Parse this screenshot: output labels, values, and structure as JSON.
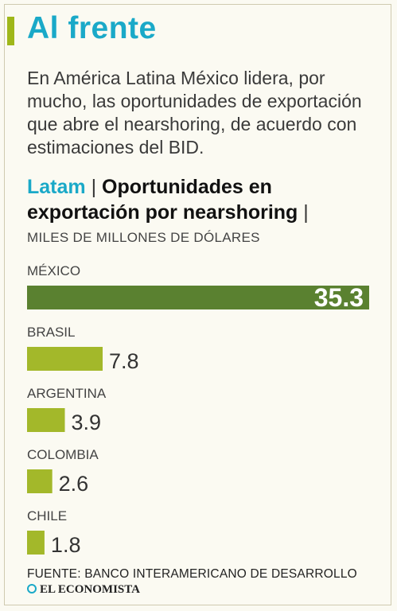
{
  "header": {
    "title": "Al frente",
    "intro": "En América Latina México lidera, por mucho, las oportunidades de exportación que abre el nearshoring, de acuerdo con estimaciones del BID."
  },
  "chart_header": {
    "prefix": "Latam",
    "separator": "|",
    "title": "Oportunidades en exportación por nearshoring",
    "trailing": "|",
    "units": "MILES DE MILLONES DE DÓLARES"
  },
  "chart_data": {
    "type": "bar",
    "orientation": "horizontal",
    "categories": [
      "MÉXICO",
      "BRASIL",
      "ARGENTINA",
      "COLOMBIA",
      "CHILE"
    ],
    "values": [
      35.3,
      7.8,
      3.9,
      2.6,
      1.8
    ],
    "value_labels": [
      "35.3",
      "7.8",
      "3.9",
      "2.6",
      "1.8"
    ],
    "ylabel": "MILES DE MILLONES DE DÓLARES",
    "xlim": [
      0,
      35.3
    ],
    "colors": {
      "highlight": "#5a8130",
      "bar": "#a3b82a",
      "highlight_label": "#ffffff",
      "label": "#333333"
    }
  },
  "footer": {
    "source": "FUENTE: BANCO INTERAMERICANO DE DESARROLLO",
    "brand": "EL ECONOMISTA"
  },
  "colors": {
    "accent": "#1aa9c8",
    "bullet": "#9fb71a",
    "background": "#fbfaf2"
  }
}
